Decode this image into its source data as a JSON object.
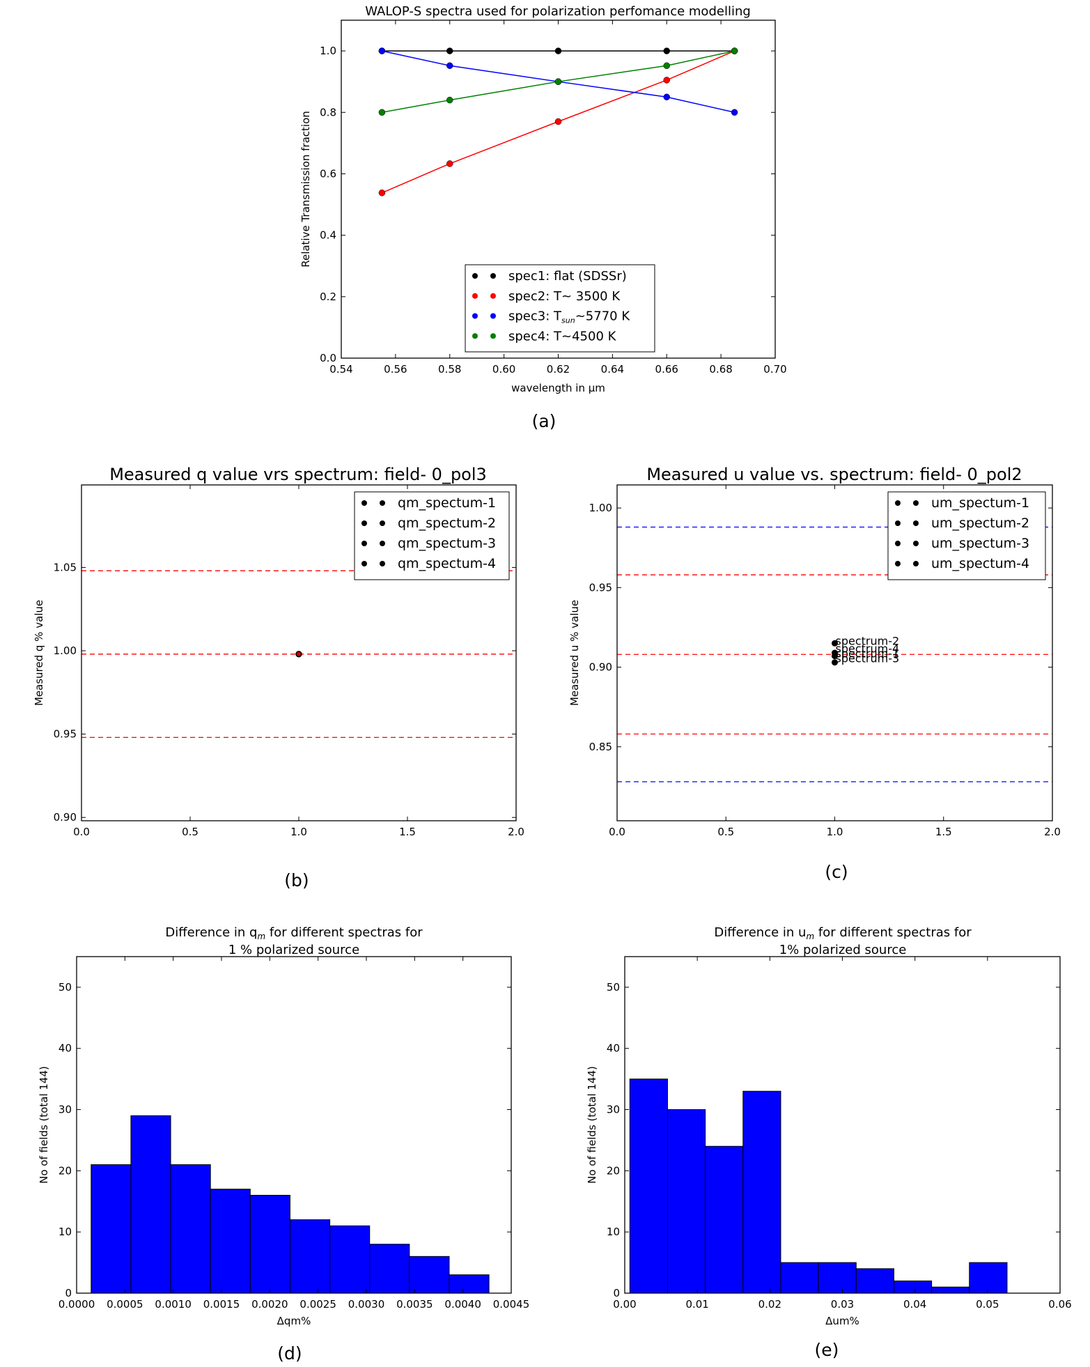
{
  "chart_data": [
    {
      "id": "a",
      "type": "line",
      "title": "WALOP-S spectra used for polarization perfomance modelling",
      "xlabel": "wavelength in μm",
      "ylabel": "Relative Transmission fraction",
      "caption": "(a)",
      "xlim": [
        0.54,
        0.7
      ],
      "ylim": [
        0.0,
        1.1
      ],
      "xticks": [
        0.54,
        0.56,
        0.58,
        0.6,
        0.62,
        0.64,
        0.66,
        0.68,
        0.7
      ],
      "xticklabels": [
        "0.54",
        "0.56",
        "0.58",
        "0.60",
        "0.62",
        "0.64",
        "0.66",
        "0.68",
        "0.70"
      ],
      "yticks": [
        0.0,
        0.2,
        0.4,
        0.6,
        0.8,
        1.0
      ],
      "yticklabels": [
        "0.0",
        "0.2",
        "0.4",
        "0.6",
        "0.8",
        "1.0"
      ],
      "grid": false,
      "legend": "lower center",
      "x": [
        0.555,
        0.58,
        0.62,
        0.66,
        0.685
      ],
      "series": [
        {
          "name": "spec1: flat (SDSSr)",
          "color": "#000000",
          "values": [
            1.0,
            1.0,
            1.0,
            1.0,
            1.0
          ]
        },
        {
          "name": "spec2: T~ 3500 K",
          "color": "#ff0000",
          "values": [
            0.538,
            0.633,
            0.77,
            0.905,
            1.0
          ]
        },
        {
          "name": "spec3: T",
          "name_sub": "sun",
          "name_tail": "~5770 K",
          "color": "#0000ff",
          "values": [
            1.0,
            0.952,
            0.9,
            0.85,
            0.8
          ]
        },
        {
          "name": "spec4: T~4500 K",
          "color": "#008000",
          "values": [
            0.8,
            0.84,
            0.9,
            0.952,
            1.0
          ]
        }
      ]
    },
    {
      "id": "b",
      "type": "scatter",
      "title": "Measured q value vrs spectrum: field- 0_pol3",
      "xlabel": "",
      "ylabel": "Measured q % value",
      "caption": "(b)",
      "xlim": [
        0.0,
        2.0
      ],
      "ylim": [
        0.898,
        1.0995
      ],
      "xticks": [
        0.0,
        0.5,
        1.0,
        1.5,
        2.0
      ],
      "xticklabels": [
        "0.0",
        "0.5",
        "1.0",
        "1.5",
        "2.0"
      ],
      "yticks": [
        0.9,
        0.95,
        1.0,
        1.05
      ],
      "yticklabels": [
        "0.90",
        "0.95",
        "1.00",
        "1.05"
      ],
      "grid": false,
      "legend": "top-right",
      "hlines": [
        {
          "y": 1.048,
          "color": "#ff0000"
        },
        {
          "y": 0.998,
          "color": "#ff0000"
        },
        {
          "y": 0.948,
          "color": "#ff0000"
        }
      ],
      "series": [
        {
          "name": "qm_spectum-1",
          "color": "#000000",
          "x": [
            1.0
          ],
          "y": [
            0.998
          ]
        },
        {
          "name": "qm_spectum-2",
          "color": "#000000",
          "x": [
            1.0
          ],
          "y": [
            0.998
          ]
        },
        {
          "name": "qm_spectum-3",
          "color": "#000000",
          "x": [
            1.0
          ],
          "y": [
            0.998
          ]
        },
        {
          "name": "qm_spectum-4",
          "color": "#000000",
          "x": [
            1.0
          ],
          "y": [
            0.998
          ]
        }
      ],
      "annotations": []
    },
    {
      "id": "c",
      "type": "scatter",
      "title": "Measured u value vs. spectrum: field- 0_pol2",
      "xlabel": "",
      "ylabel": "Measured u % value",
      "caption": "(c)",
      "xlim": [
        0.0,
        2.0
      ],
      "ylim": [
        0.8035,
        1.0145
      ],
      "xticks": [
        0.0,
        0.5,
        1.0,
        1.5,
        2.0
      ],
      "xticklabels": [
        "0.0",
        "0.5",
        "1.0",
        "1.5",
        "2.0"
      ],
      "yticks": [
        0.85,
        0.9,
        0.95,
        1.0
      ],
      "yticklabels": [
        "0.85",
        "0.90",
        "0.95",
        "1.00"
      ],
      "grid": false,
      "legend": "top-right",
      "hlines": [
        {
          "y": 0.988,
          "color": "#0000ff"
        },
        {
          "y": 0.958,
          "color": "#ff0000"
        },
        {
          "y": 0.908,
          "color": "#ff0000"
        },
        {
          "y": 0.858,
          "color": "#ff0000"
        },
        {
          "y": 0.828,
          "color": "#0000ff"
        }
      ],
      "series": [
        {
          "name": "um_spectum-1",
          "color": "#000000",
          "x": [
            1.0
          ],
          "y": [
            0.907
          ]
        },
        {
          "name": "um_spectum-2",
          "color": "#000000",
          "x": [
            1.0
          ],
          "y": [
            0.915
          ]
        },
        {
          "name": "um_spectum-3",
          "color": "#000000",
          "x": [
            1.0
          ],
          "y": [
            0.903
          ]
        },
        {
          "name": "um_spectum-4",
          "color": "#000000",
          "x": [
            1.0
          ],
          "y": [
            0.909
          ]
        }
      ],
      "annotations": [
        {
          "text": "spectrum-2",
          "x": 1.0,
          "y": 0.915
        },
        {
          "text": "spectrum-4",
          "x": 1.0,
          "y": 0.91
        },
        {
          "text": "spectrum-1",
          "x": 1.0,
          "y": 0.907
        },
        {
          "text": "spectrum-3",
          "x": 1.0,
          "y": 0.904
        }
      ]
    },
    {
      "id": "d",
      "type": "bar",
      "title": "Difference in q",
      "title_sub": "m",
      "title_tail": " for different spectras for",
      "title_line2": "1 % polarized source",
      "xlabel": "Δqm%",
      "ylabel": "No of fields (total 144)",
      "caption": "(d)",
      "xlim": [
        0.0,
        0.0045
      ],
      "ylim": [
        0,
        55
      ],
      "xticks": [
        0.0,
        0.0005,
        0.001,
        0.0015,
        0.002,
        0.0025,
        0.003,
        0.0035,
        0.004,
        0.0045
      ],
      "xticklabels": [
        "0.0000",
        "0.0005",
        "0.0010",
        "0.0015",
        "0.0020",
        "0.0025",
        "0.0030",
        "0.0035",
        "0.0040",
        "0.0045"
      ],
      "yticks": [
        0,
        10,
        20,
        30,
        40,
        50
      ],
      "yticklabels": [
        "0",
        "10",
        "20",
        "30",
        "40",
        "50"
      ],
      "grid": false,
      "color": "#0000ff",
      "bin_edges": [
        0.00015,
        0.000562,
        0.000974,
        0.001386,
        0.001798,
        0.00221,
        0.002622,
        0.003034,
        0.003446,
        0.003858,
        0.00427
      ],
      "values": [
        21,
        29,
        21,
        17,
        16,
        12,
        11,
        8,
        6,
        3
      ]
    },
    {
      "id": "e",
      "type": "bar",
      "title": "Difference in u",
      "title_sub": "m",
      "title_tail": " for different spectras for",
      "title_line2": "1% polarized source",
      "xlabel": "Δum%",
      "ylabel": "No of fields (total 144)",
      "caption": "(e)",
      "xlim": [
        0.0,
        0.06
      ],
      "ylim": [
        0,
        55
      ],
      "xticks": [
        0.0,
        0.01,
        0.02,
        0.03,
        0.04,
        0.05,
        0.06
      ],
      "xticklabels": [
        "0.00",
        "0.01",
        "0.02",
        "0.03",
        "0.04",
        "0.05",
        "0.06"
      ],
      "yticks": [
        0,
        10,
        20,
        30,
        40,
        50
      ],
      "yticklabels": [
        "0",
        "10",
        "20",
        "30",
        "40",
        "50"
      ],
      "grid": false,
      "color": "#0000ff",
      "bin_edges": [
        0.0007,
        0.0059,
        0.0111,
        0.0163,
        0.0215,
        0.0267,
        0.0319,
        0.0371,
        0.0423,
        0.0475,
        0.0527
      ],
      "values": [
        35,
        30,
        24,
        33,
        5,
        5,
        4,
        2,
        1,
        5
      ]
    }
  ]
}
